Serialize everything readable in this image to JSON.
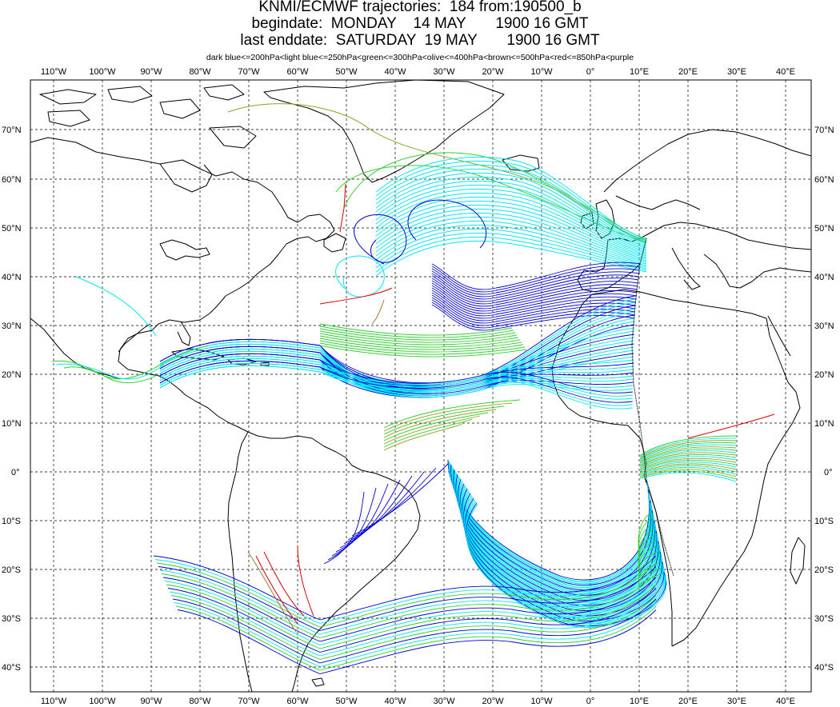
{
  "header": {
    "title_line1": "KNMI/ECMWF trajectories:  184 from:190500_b",
    "title_line2": "begindate:  MONDAY    14 MAY       1900 16 GMT",
    "title_line3": "last enddate:  SATURDAY  19 MAY       1900 16 GMT",
    "legend": "dark blue<=200hPa<light blue<=250hPa<green<=300hPa<olive<=400hPa<brown<=500hPa<red<=850hPa<purple"
  },
  "axes": {
    "lon_labels": [
      "110°W",
      "100°W",
      "90°W",
      "80°W",
      "70°W",
      "60°W",
      "50°W",
      "40°W",
      "30°W",
      "20°W",
      "10°W",
      "0°",
      "10°E",
      "20°E",
      "30°E",
      "40°E"
    ],
    "lat_labels": [
      "70°N",
      "60°N",
      "50°N",
      "40°N",
      "30°N",
      "20°N",
      "10°N",
      "0°",
      "10°S",
      "20°S",
      "30°S",
      "40°S"
    ]
  },
  "colors": {
    "dark_blue": "#0000d8",
    "light_blue": "#00e8f0",
    "green": "#30d030",
    "olive": "#90a020",
    "brown": "#a07830",
    "red": "#e00000",
    "coast": "#000000",
    "grid": "#000000"
  }
}
